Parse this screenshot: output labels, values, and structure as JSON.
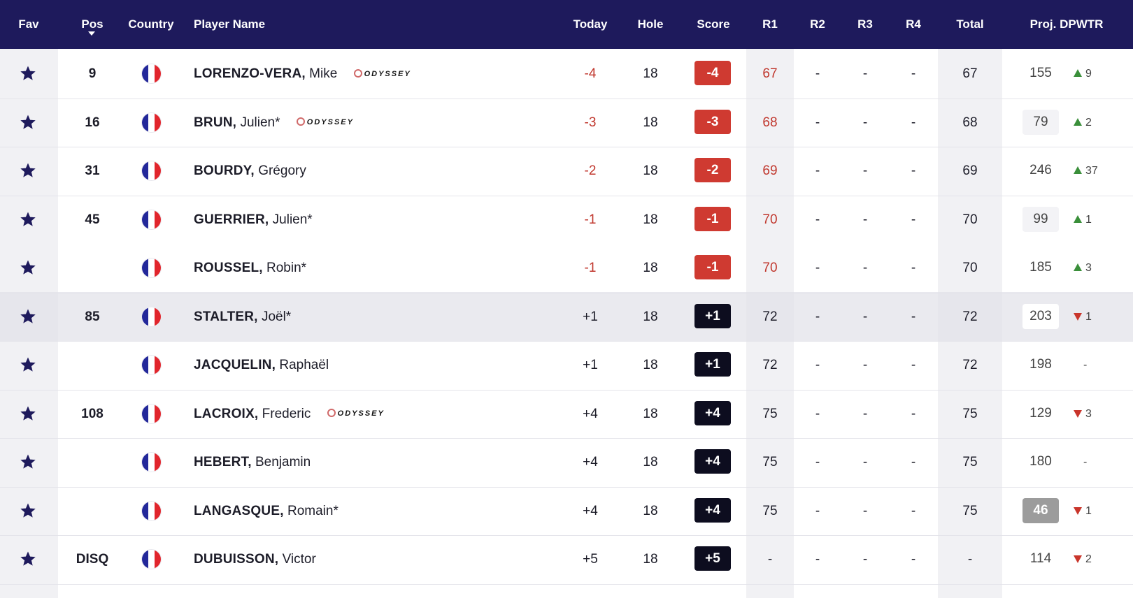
{
  "header": {
    "fav": "Fav",
    "pos": "Pos",
    "country": "Country",
    "player": "Player Name",
    "today": "Today",
    "hole": "Hole",
    "score": "Score",
    "r1": "R1",
    "r2": "R2",
    "r3": "R3",
    "r4": "R4",
    "total": "Total",
    "proj": "Proj. DPWTR"
  },
  "sponsor_text": "ODYSSEY",
  "colors": {
    "header_bg": "#1e1a5c",
    "under_par": "#cf3a31",
    "over_par": "#0d0d1f",
    "move_up": "#3a8f3a",
    "move_down": "#c9352b"
  },
  "rows": [
    {
      "pos": "9",
      "last": "LORENZO-VERA,",
      "first": "Mike",
      "sponsor": true,
      "today": "-4",
      "hole": "18",
      "score": "-4",
      "r1": "67",
      "r2": "-",
      "r3": "-",
      "r4": "-",
      "total": "67",
      "proj": "155",
      "move": "9",
      "dir": "up"
    },
    {
      "pos": "16",
      "last": "BRUN,",
      "first": "Julien*",
      "sponsor": true,
      "today": "-3",
      "hole": "18",
      "score": "-3",
      "r1": "68",
      "r2": "-",
      "r3": "-",
      "r4": "-",
      "total": "68",
      "proj": "79",
      "move": "2",
      "dir": "up"
    },
    {
      "pos": "31",
      "last": "BOURDY,",
      "first": "Grégory",
      "sponsor": false,
      "today": "-2",
      "hole": "18",
      "score": "-2",
      "r1": "69",
      "r2": "-",
      "r3": "-",
      "r4": "-",
      "total": "69",
      "proj": "246",
      "move": "37",
      "dir": "up"
    },
    {
      "pos": "45",
      "last": "GUERRIER,",
      "first": "Julien*",
      "sponsor": false,
      "today": "-1",
      "hole": "18",
      "score": "-1",
      "r1": "70",
      "r2": "-",
      "r3": "-",
      "r4": "-",
      "total": "70",
      "proj": "99",
      "move": "1",
      "dir": "up"
    },
    {
      "pos": "",
      "last": "ROUSSEL,",
      "first": "Robin*",
      "sponsor": false,
      "today": "-1",
      "hole": "18",
      "score": "-1",
      "r1": "70",
      "r2": "-",
      "r3": "-",
      "r4": "-",
      "total": "70",
      "proj": "185",
      "move": "3",
      "dir": "up"
    },
    {
      "pos": "85",
      "last": "STALTER,",
      "first": "Joël*",
      "sponsor": false,
      "today": "+1",
      "hole": "18",
      "score": "+1",
      "r1": "72",
      "r2": "-",
      "r3": "-",
      "r4": "-",
      "total": "72",
      "proj": "203",
      "move": "1",
      "dir": "down"
    },
    {
      "pos": "",
      "last": "JACQUELIN,",
      "first": "Raphaël",
      "sponsor": false,
      "today": "+1",
      "hole": "18",
      "score": "+1",
      "r1": "72",
      "r2": "-",
      "r3": "-",
      "r4": "-",
      "total": "72",
      "proj": "198",
      "move": "-",
      "dir": "none"
    },
    {
      "pos": "108",
      "last": "LACROIX,",
      "first": "Frederic",
      "sponsor": true,
      "today": "+4",
      "hole": "18",
      "score": "+4",
      "r1": "75",
      "r2": "-",
      "r3": "-",
      "r4": "-",
      "total": "75",
      "proj": "129",
      "move": "3",
      "dir": "down"
    },
    {
      "pos": "",
      "last": "HEBERT,",
      "first": "Benjamin",
      "sponsor": false,
      "today": "+4",
      "hole": "18",
      "score": "+4",
      "r1": "75",
      "r2": "-",
      "r3": "-",
      "r4": "-",
      "total": "75",
      "proj": "180",
      "move": "-",
      "dir": "none"
    },
    {
      "pos": "",
      "last": "LANGASQUE,",
      "first": "Romain*",
      "sponsor": false,
      "today": "+4",
      "hole": "18",
      "score": "+4",
      "r1": "75",
      "r2": "-",
      "r3": "-",
      "r4": "-",
      "total": "75",
      "proj": "46",
      "move": "1",
      "dir": "down"
    },
    {
      "pos": "DISQ",
      "last": "DUBUISSON,",
      "first": "Victor",
      "sponsor": false,
      "today": "+5",
      "hole": "18",
      "score": "+5",
      "r1": "-",
      "r2": "-",
      "r3": "-",
      "r4": "-",
      "total": "-",
      "proj": "114",
      "move": "2",
      "dir": "down"
    }
  ]
}
